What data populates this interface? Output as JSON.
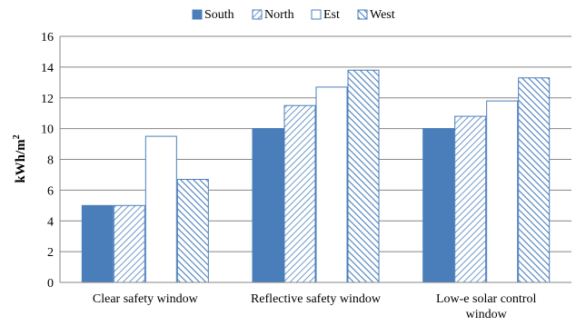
{
  "chart_data": {
    "type": "bar",
    "title": "",
    "xlabel": "",
    "ylabel": "kWh/m",
    "ylabel_superscript": "2",
    "ylim": [
      0,
      16
    ],
    "yticks": [
      0,
      2,
      4,
      6,
      8,
      10,
      12,
      14,
      16
    ],
    "grid": true,
    "legend_position": "top",
    "categories": [
      [
        "Clear safety window"
      ],
      [
        "Reflective safety window"
      ],
      [
        "Low-e solar control",
        "window"
      ]
    ],
    "series": [
      {
        "name": "South",
        "style": "solid",
        "color": "#4a7ebb",
        "values": [
          5.0,
          10.0,
          10.0
        ]
      },
      {
        "name": "North",
        "style": "hatch-fwd",
        "color": "#4a7ebb",
        "values": [
          5.0,
          11.5,
          10.8
        ]
      },
      {
        "name": "Est",
        "style": "white",
        "color": "#4a7ebb",
        "values": [
          9.5,
          12.7,
          11.8
        ]
      },
      {
        "name": "West",
        "style": "hatch-back",
        "color": "#4a7ebb",
        "values": [
          6.7,
          13.8,
          13.3
        ]
      }
    ]
  }
}
